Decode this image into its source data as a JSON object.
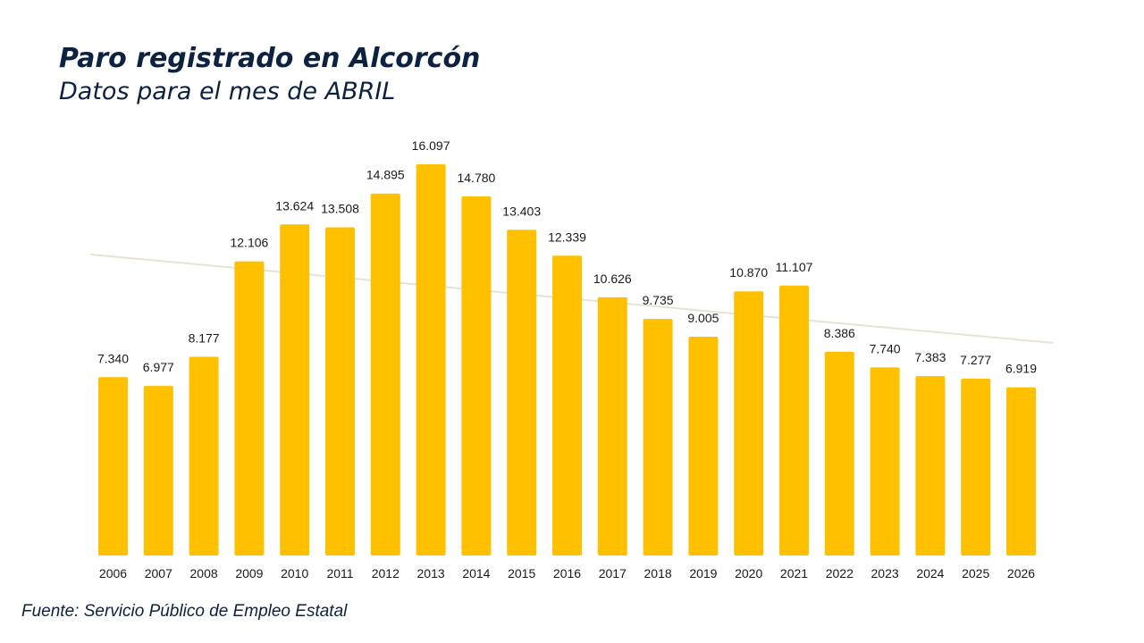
{
  "chart_data": {
    "type": "bar",
    "title": "Paro registrado en Alcorcón",
    "subtitle": "Datos para el mes de ABRIL",
    "categories": [
      "2006",
      "2007",
      "2008",
      "2009",
      "2010",
      "2011",
      "2012",
      "2013",
      "2014",
      "2015",
      "2016",
      "2017",
      "2018",
      "2019",
      "2020",
      "2021",
      "2022",
      "2023",
      "2024",
      "2025",
      "2026"
    ],
    "values": [
      7340,
      6977,
      8177,
      12106,
      13624,
      13508,
      14895,
      16097,
      14780,
      13403,
      12339,
      10626,
      9735,
      9005,
      10870,
      11107,
      8386,
      7740,
      7383,
      7277,
      6919
    ],
    "value_labels": [
      "7.340",
      "6.977",
      "8.177",
      "12.106",
      "13.624",
      "13.508",
      "14.895",
      "16.097",
      "14.780",
      "13.403",
      "12.339",
      "10.626",
      "9.735",
      "9.005",
      "10.870",
      "11.107",
      "8.386",
      "7.740",
      "7.383",
      "7.277",
      "6.919"
    ],
    "xlabel": "",
    "ylabel": "",
    "ylim": [
      0,
      16097
    ],
    "grid": false,
    "trendline": true,
    "colors": {
      "bar": "#FFC000",
      "trendline": "#E8E2D2",
      "title": "#0D2240",
      "labels": "#1A1A1A"
    },
    "source": "Fuente: Servicio Público de Empleo Estatal"
  }
}
